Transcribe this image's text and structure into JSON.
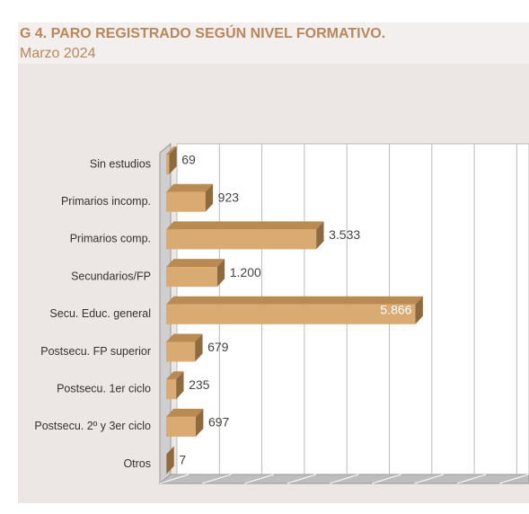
{
  "chart_data": {
    "type": "bar3d",
    "title": "G 4. PARO REGISTRADO SEGÚN NIVEL FORMATIVO.",
    "subtitle": "Marzo 2024",
    "categories": [
      "Sin estudios",
      "Primarios incomp.",
      "Primarios comp.",
      "Secundarios/FP",
      "Secu. Educ. general",
      "Postsecu. FP superior",
      "Postsecu.  1er ciclo",
      "Postsecu. 2º y 3er ciclo",
      "Otros"
    ],
    "values": [
      69,
      923,
      3533,
      1200,
      5866,
      679,
      235,
      697,
      7
    ],
    "value_labels": [
      "69",
      "923",
      "3.533",
      "1.200",
      "5.866",
      "679",
      "235",
      "697",
      "7"
    ],
    "color": "#d9ab73",
    "xlim": [
      0,
      8000
    ],
    "xticks": [
      0,
      1000,
      2000,
      3000,
      4000,
      5000,
      6000,
      7000,
      8000
    ],
    "grid": true
  }
}
